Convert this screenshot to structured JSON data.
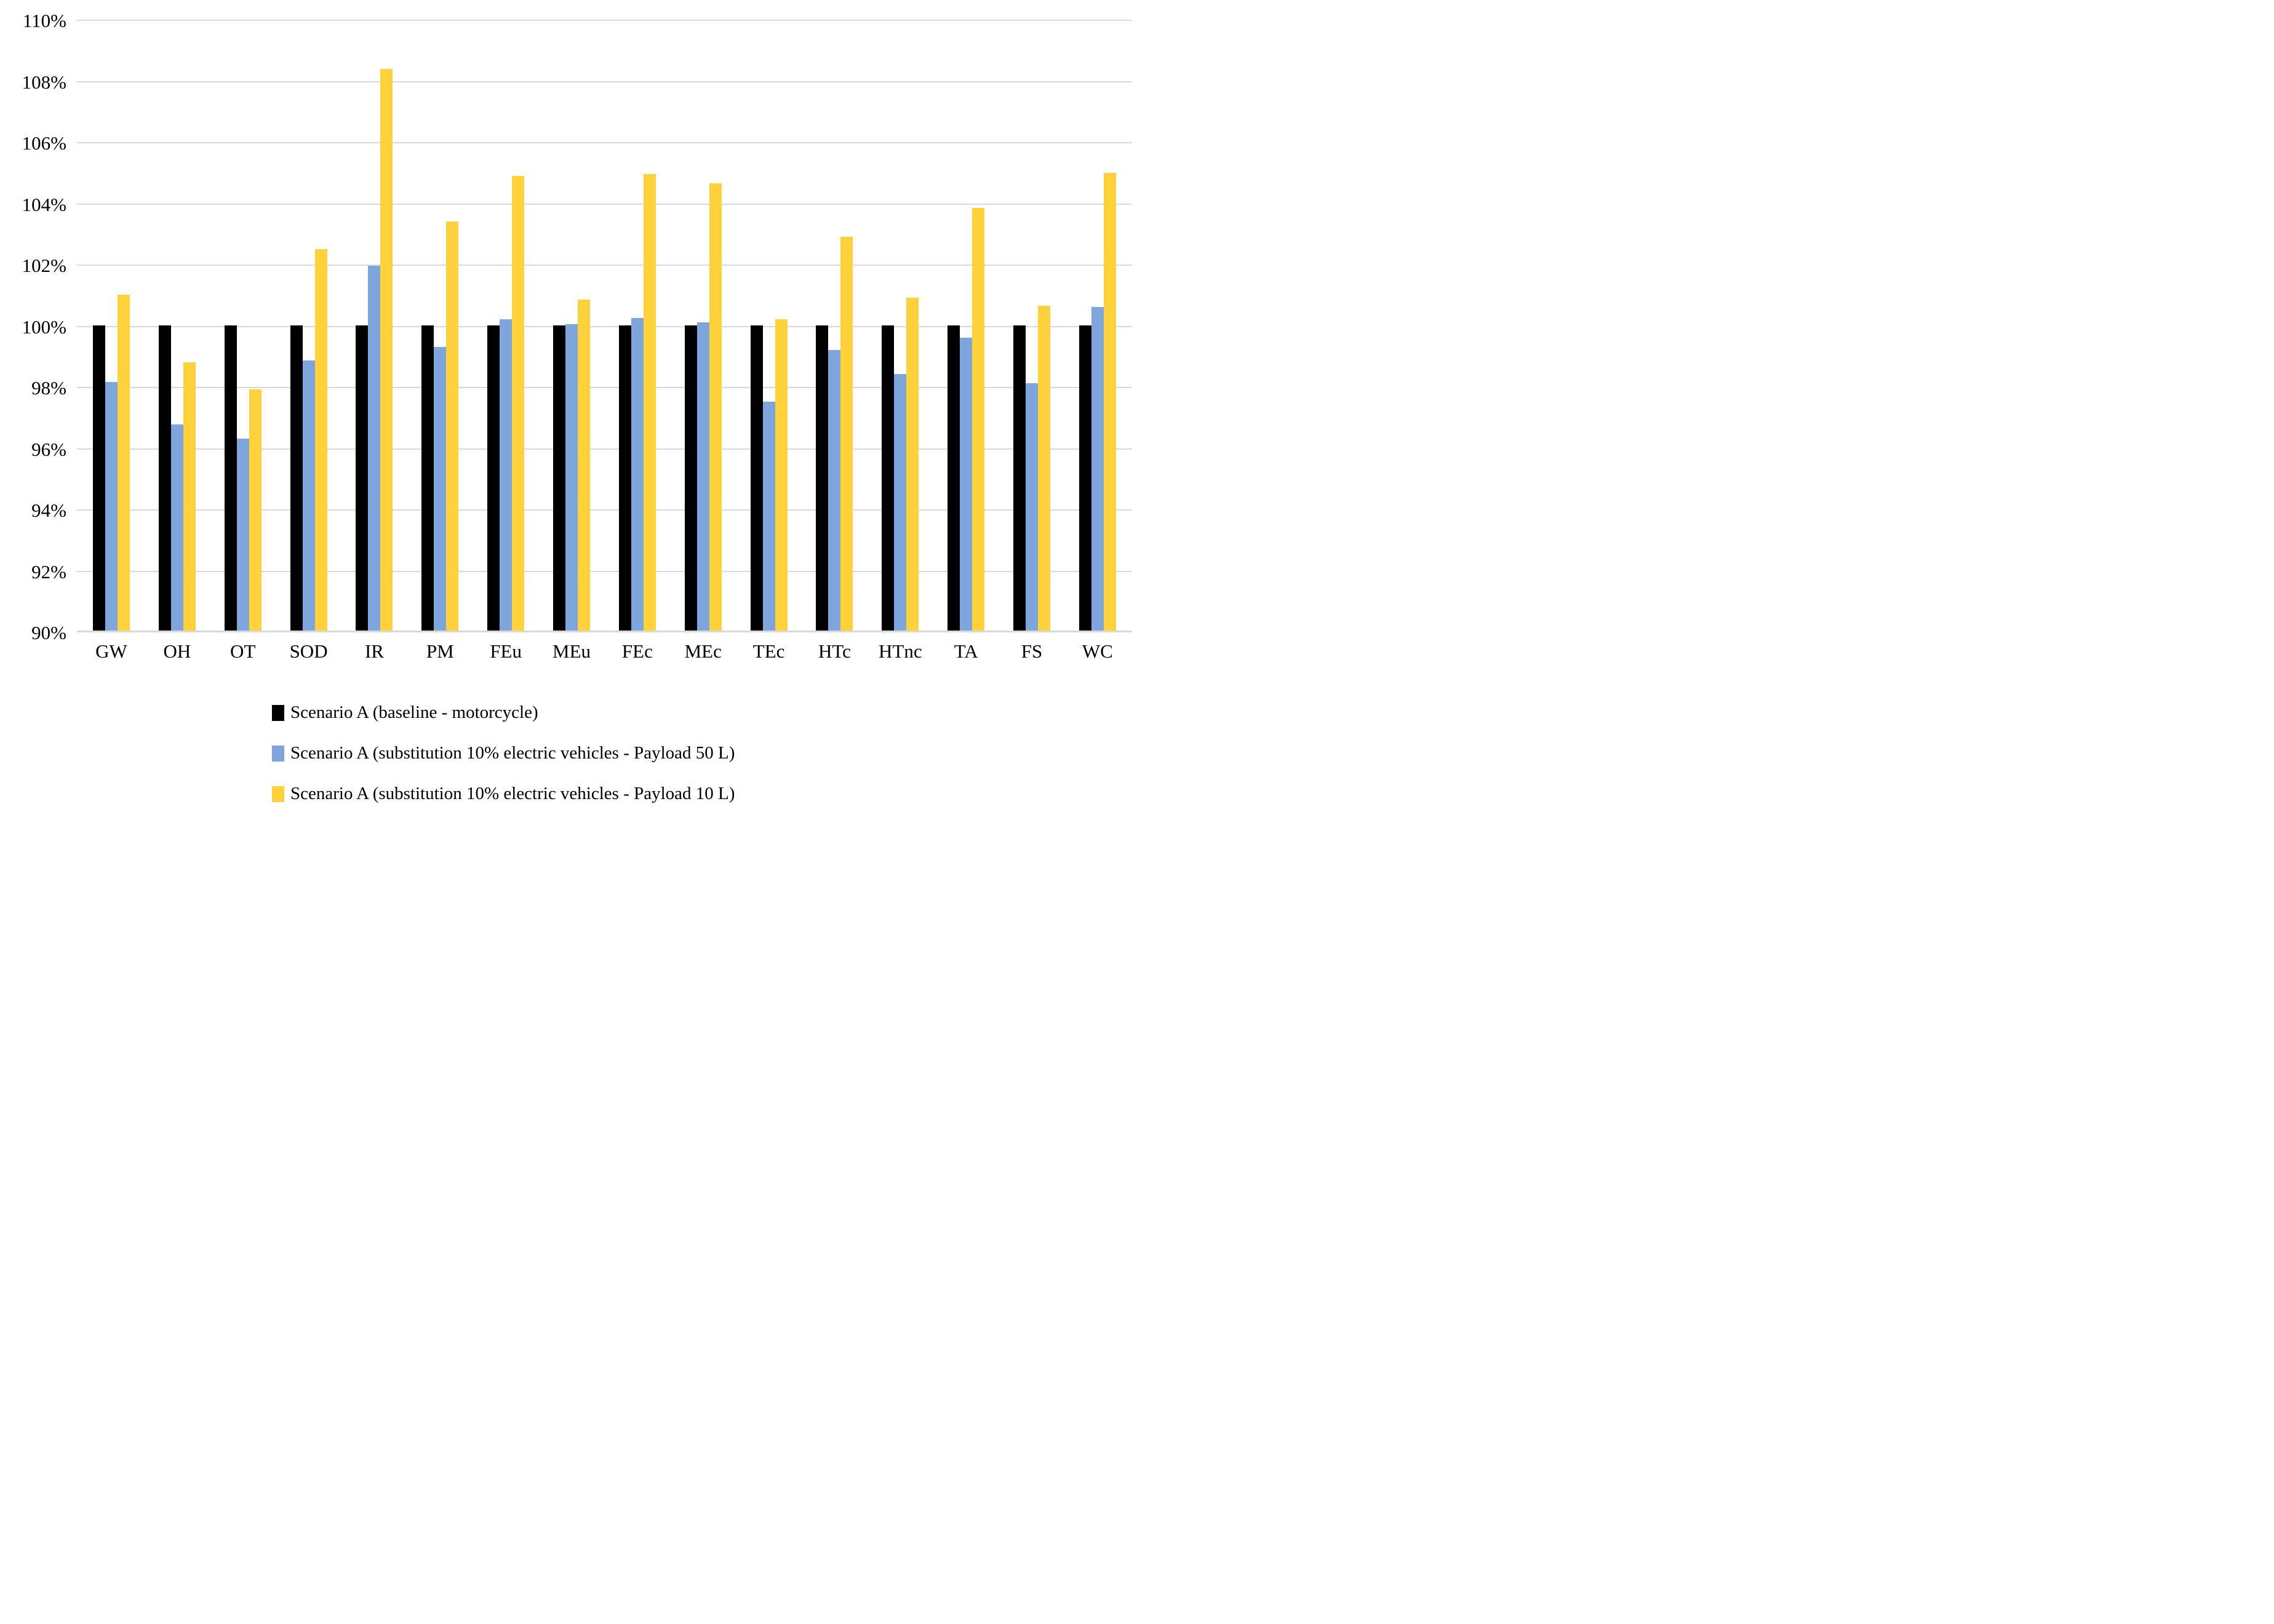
{
  "chart_data": {
    "type": "bar",
    "title": "",
    "xlabel": "",
    "ylabel": "",
    "ylim": [
      90,
      110
    ],
    "grid": true,
    "gridline_color": "#d9d9d9",
    "legend_position": "bottom-left",
    "y_ticks": [
      {
        "value": 110,
        "label": "110%"
      },
      {
        "value": 108,
        "label": "108%"
      },
      {
        "value": 106,
        "label": "106%"
      },
      {
        "value": 104,
        "label": "104%"
      },
      {
        "value": 102,
        "label": "102%"
      },
      {
        "value": 100,
        "label": "100%"
      },
      {
        "value": 98,
        "label": "98%"
      },
      {
        "value": 96,
        "label": "96%"
      },
      {
        "value": 94,
        "label": "94%"
      },
      {
        "value": 92,
        "label": "92%"
      },
      {
        "value": 90,
        "label": "90%"
      }
    ],
    "categories": [
      "GW",
      "OH",
      "OT",
      "SOD",
      "IR",
      "PM",
      "FEu",
      "MEu",
      "FEc",
      "MEc",
      "TEc",
      "HTc",
      "HTnc",
      "TA",
      "FS",
      "WC"
    ],
    "series": [
      {
        "name": "Scenario A (baseline - motorcycle)",
        "color": "#000000",
        "values": [
          100,
          100,
          100,
          100,
          100,
          100,
          100,
          100,
          100,
          100,
          100,
          100,
          100,
          100,
          100,
          100
        ]
      },
      {
        "name": "Scenario A (substitution 10% electric vehicles - Payload 50 L)",
        "color": "#7ea6dc",
        "values": [
          98.15,
          96.75,
          96.3,
          98.85,
          101.95,
          99.3,
          100.2,
          100.05,
          100.25,
          100.1,
          97.5,
          99.2,
          98.4,
          99.6,
          98.1,
          100.6
        ]
      },
      {
        "name": "Scenario A (substitution 10% electric vehicles - Payload 10 L)",
        "color": "#ffd23c",
        "values": [
          101.0,
          98.8,
          97.9,
          102.5,
          108.4,
          103.4,
          104.9,
          100.85,
          104.95,
          104.65,
          100.2,
          102.9,
          100.9,
          103.85,
          100.65,
          105.0
        ]
      }
    ]
  }
}
